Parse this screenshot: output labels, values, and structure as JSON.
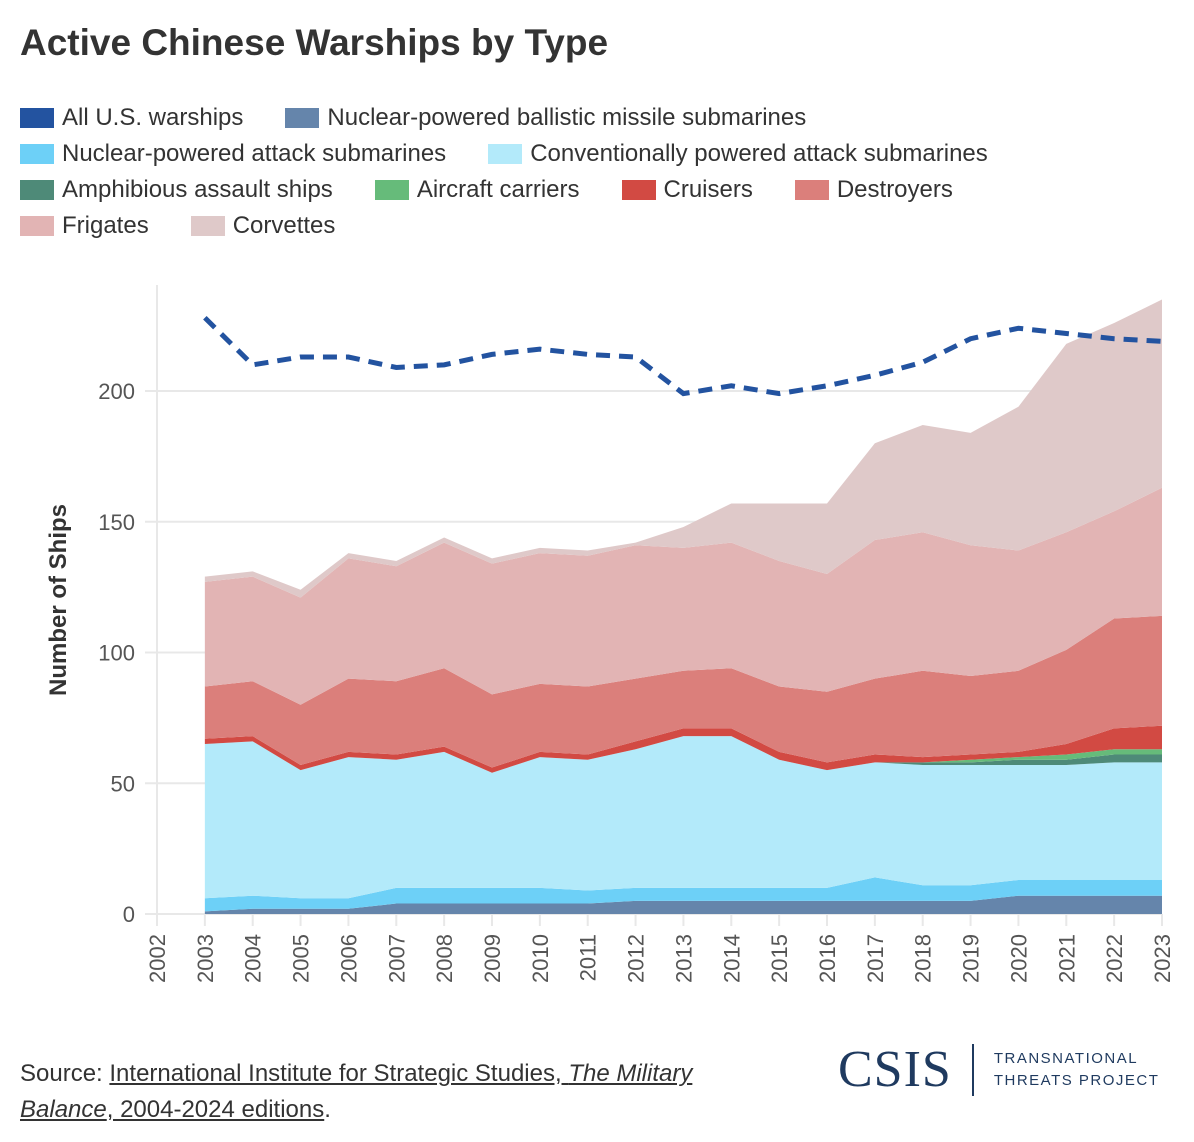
{
  "title": "Active Chinese Warships by Type",
  "source": {
    "prefix": "Source: ",
    "link1": "International Institute for Strategic Studies, ",
    "link_italic1": "The Military",
    "link_italic2": "Balance",
    "link2": ", 2004-2024 editions",
    "suffix": "."
  },
  "logo": {
    "name": "CSIS",
    "line1": "TRANSNATIONAL",
    "line2": "THREATS PROJECT"
  },
  "chart_data": {
    "type": "area",
    "stacked": true,
    "title": "Active Chinese Warships by Type",
    "xlabel": "",
    "ylabel": "Number of Ships",
    "xlim": [
      2002,
      2023
    ],
    "ylim": [
      0,
      235
    ],
    "yticks": [
      0,
      50,
      100,
      150,
      200
    ],
    "x": [
      2003,
      2004,
      2005,
      2006,
      2007,
      2008,
      2009,
      2010,
      2011,
      2012,
      2013,
      2014,
      2015,
      2016,
      2017,
      2018,
      2019,
      2020,
      2021,
      2022,
      2023
    ],
    "xticks": [
      2002,
      2003,
      2004,
      2005,
      2006,
      2007,
      2008,
      2009,
      2010,
      2011,
      2012,
      2013,
      2014,
      2015,
      2016,
      2017,
      2018,
      2019,
      2020,
      2021,
      2022,
      2023
    ],
    "grid": true,
    "legend_placement": "top",
    "series": [
      {
        "name": "Nuclear-powered ballistic missile submarines",
        "color": "#6585ab",
        "values": [
          1,
          2,
          2,
          2,
          4,
          4,
          4,
          4,
          4,
          5,
          5,
          5,
          5,
          5,
          5,
          5,
          5,
          7,
          7,
          7,
          7
        ]
      },
      {
        "name": "Nuclear-powered attack submarines",
        "color": "#6dd0f7",
        "values": [
          5,
          5,
          4,
          4,
          6,
          6,
          6,
          6,
          5,
          5,
          5,
          5,
          5,
          5,
          9,
          6,
          6,
          6,
          6,
          6,
          6
        ]
      },
      {
        "name": "Conventionally powered attack submarines",
        "color": "#b3eafa",
        "values": [
          59,
          59,
          49,
          54,
          49,
          52,
          44,
          50,
          50,
          53,
          58,
          58,
          49,
          45,
          44,
          46,
          46,
          44,
          44,
          45,
          45
        ]
      },
      {
        "name": "Amphibious assault ships",
        "color": "#4e8a78",
        "values": [
          0,
          0,
          0,
          0,
          0,
          0,
          0,
          0,
          0,
          0,
          0,
          0,
          0,
          0,
          0,
          1,
          1,
          2,
          2,
          3,
          3
        ]
      },
      {
        "name": "Aircraft carriers",
        "color": "#66bb7a",
        "values": [
          0,
          0,
          0,
          0,
          0,
          0,
          0,
          0,
          0,
          0,
          0,
          0,
          0,
          0,
          0,
          0,
          1,
          1,
          2,
          2,
          2
        ]
      },
      {
        "name": "Cruisers",
        "color": "#d24a43",
        "values": [
          2,
          2,
          2,
          2,
          2,
          2,
          2,
          2,
          2,
          3,
          3,
          3,
          3,
          3,
          3,
          2,
          2,
          2,
          4,
          8,
          9
        ]
      },
      {
        "name": "Destroyers",
        "color": "#db7f7b",
        "values": [
          20,
          21,
          23,
          28,
          28,
          30,
          28,
          26,
          26,
          24,
          22,
          23,
          25,
          27,
          29,
          33,
          30,
          31,
          36,
          42,
          42
        ]
      },
      {
        "name": "Frigates",
        "color": "#e2b4b4",
        "values": [
          40,
          40,
          41,
          46,
          44,
          48,
          50,
          50,
          50,
          51,
          47,
          48,
          48,
          45,
          53,
          53,
          50,
          46,
          45,
          41,
          49
        ]
      },
      {
        "name": "Corvettes",
        "color": "#dfc9c9",
        "values": [
          2,
          2,
          3,
          2,
          2,
          2,
          2,
          2,
          2,
          1,
          8,
          15,
          22,
          27,
          37,
          41,
          43,
          55,
          72,
          72,
          72
        ]
      }
    ],
    "line_series": {
      "name": "All U.S. warships",
      "color": "#2353a0",
      "style": "dashed",
      "values": [
        228,
        210,
        213,
        213,
        209,
        210,
        214,
        216,
        214,
        213,
        199,
        202,
        199,
        202,
        206,
        211,
        220,
        224,
        222,
        220,
        219
      ]
    },
    "legend_order": [
      "All U.S. warships",
      "Nuclear-powered ballistic missile submarines",
      "Nuclear-powered attack submarines",
      "Conventionally powered attack submarines",
      "Amphibious assault ships",
      "Aircraft carriers",
      "Cruisers",
      "Destroyers",
      "Frigates",
      "Corvettes"
    ]
  }
}
